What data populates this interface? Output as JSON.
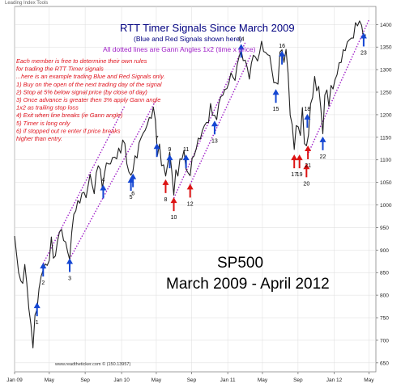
{
  "header": {
    "source_label": "Leading Index Tools"
  },
  "title": "RTT Timer Signals Since March 2009",
  "subtitle": "(Blue and Red Signals shown here)",
  "gann_note": "All dotted lines are Gann Angles 1x2 (time x price)",
  "notes": [
    "Each member is free to determine their own rules",
    "for trading the RTT Timer signals",
    "...here is an example trading Blue and Red Signals only.",
    "1) Buy on the open of the next trading day of the signal",
    "2) Stop at 5% below signal price (by close of day)",
    "3) Once advance is greater then 3% apply Gann angle",
    "    1x2 as trailing stop loss",
    "4) Exit when line breaks (ie Gann angle)",
    "5) Timer is long only",
    "6) if stopped out re enter if price breaks",
    "    higher than entry."
  ],
  "big_label": {
    "line1": "SP500",
    "line2": "March 2009 - April 2012"
  },
  "watermark": "www.readtheticker.com © (150.13957)",
  "colors": {
    "price": "#222222",
    "title": "#000080",
    "note_red": "#e0141e",
    "gann": "#a020c8",
    "blue_arrow": "#1446d2",
    "red_arrow": "#dc1414",
    "grid": "#dcdcdc"
  },
  "chart_data": {
    "type": "line",
    "series": [
      {
        "values": [
          [
            "2009-01-02",
            931
          ],
          [
            "2009-01-09",
            890
          ],
          [
            "2009-01-16",
            850
          ],
          [
            "2009-01-23",
            832
          ],
          [
            "2009-01-30",
            826
          ],
          [
            "2009-02-06",
            868
          ],
          [
            "2009-02-13",
            826
          ],
          [
            "2009-02-20",
            770
          ],
          [
            "2009-02-27",
            735
          ],
          [
            "2009-03-06",
            683
          ],
          [
            "2009-03-13",
            756
          ],
          [
            "2009-03-20",
            768
          ],
          [
            "2009-03-27",
            815
          ],
          [
            "2009-04-03",
            842
          ],
          [
            "2009-04-10",
            856
          ],
          [
            "2009-04-17",
            869
          ],
          [
            "2009-04-24",
            866
          ],
          [
            "2009-05-01",
            877
          ],
          [
            "2009-05-08",
            929
          ],
          [
            "2009-05-15",
            882
          ],
          [
            "2009-05-22",
            887
          ],
          [
            "2009-05-29",
            919
          ],
          [
            "2009-06-05",
            940
          ],
          [
            "2009-06-12",
            946
          ],
          [
            "2009-06-19",
            921
          ],
          [
            "2009-06-26",
            918
          ],
          [
            "2009-07-03",
            896
          ],
          [
            "2009-07-10",
            879
          ],
          [
            "2009-07-17",
            940
          ],
          [
            "2009-07-24",
            979
          ],
          [
            "2009-07-31",
            987
          ],
          [
            "2009-08-07",
            1010
          ],
          [
            "2009-08-14",
            1004
          ],
          [
            "2009-08-21",
            1026
          ],
          [
            "2009-08-28",
            1028
          ],
          [
            "2009-09-04",
            1016
          ],
          [
            "2009-09-11",
            1042
          ],
          [
            "2009-09-18",
            1068
          ],
          [
            "2009-09-25",
            1044
          ],
          [
            "2009-10-02",
            1025
          ],
          [
            "2009-10-09",
            1071
          ],
          [
            "2009-10-16",
            1087
          ],
          [
            "2009-10-23",
            1079
          ],
          [
            "2009-10-30",
            1036
          ],
          [
            "2009-11-06",
            1069
          ],
          [
            "2009-11-13",
            1093
          ],
          [
            "2009-11-20",
            1091
          ],
          [
            "2009-11-27",
            1091
          ],
          [
            "2009-12-04",
            1105
          ],
          [
            "2009-12-11",
            1106
          ],
          [
            "2009-12-18",
            1102
          ],
          [
            "2009-12-25",
            1126
          ],
          [
            "2010-01-01",
            1115
          ],
          [
            "2010-01-08",
            1144
          ],
          [
            "2010-01-15",
            1136
          ],
          [
            "2010-01-22",
            1091
          ],
          [
            "2010-01-29",
            1073
          ],
          [
            "2010-02-05",
            1066
          ],
          [
            "2010-02-12",
            1075
          ],
          [
            "2010-02-19",
            1109
          ],
          [
            "2010-02-26",
            1104
          ],
          [
            "2010-03-05",
            1138
          ],
          [
            "2010-03-12",
            1149
          ],
          [
            "2010-03-19",
            1159
          ],
          [
            "2010-03-26",
            1166
          ],
          [
            "2010-04-02",
            1178
          ],
          [
            "2010-04-09",
            1194
          ],
          [
            "2010-04-16",
            1192
          ],
          [
            "2010-04-23",
            1217
          ],
          [
            "2010-04-30",
            1187
          ],
          [
            "2010-05-07",
            1110
          ],
          [
            "2010-05-14",
            1135
          ],
          [
            "2010-05-21",
            1087
          ],
          [
            "2010-05-28",
            1089
          ],
          [
            "2010-06-04",
            1064
          ],
          [
            "2010-06-11",
            1091
          ],
          [
            "2010-06-18",
            1117
          ],
          [
            "2010-06-25",
            1076
          ],
          [
            "2010-07-02",
            1022
          ],
          [
            "2010-07-09",
            1078
          ],
          [
            "2010-07-16",
            1064
          ],
          [
            "2010-07-23",
            1102
          ],
          [
            "2010-07-30",
            1101
          ],
          [
            "2010-08-06",
            1121
          ],
          [
            "2010-08-13",
            1079
          ],
          [
            "2010-08-20",
            1071
          ],
          [
            "2010-08-27",
            1065
          ],
          [
            "2010-09-03",
            1104
          ],
          [
            "2010-09-10",
            1109
          ],
          [
            "2010-09-17",
            1125
          ],
          [
            "2010-09-24",
            1148
          ],
          [
            "2010-10-01",
            1146
          ],
          [
            "2010-10-08",
            1165
          ],
          [
            "2010-10-15",
            1176
          ],
          [
            "2010-10-22",
            1183
          ],
          [
            "2010-10-29",
            1183
          ],
          [
            "2010-11-05",
            1225
          ],
          [
            "2010-11-12",
            1199
          ],
          [
            "2010-11-19",
            1199
          ],
          [
            "2010-11-26",
            1189
          ],
          [
            "2010-12-03",
            1224
          ],
          [
            "2010-12-10",
            1240
          ],
          [
            "2010-12-17",
            1243
          ],
          [
            "2010-12-24",
            1256
          ],
          [
            "2010-12-31",
            1258
          ],
          [
            "2011-01-07",
            1271
          ],
          [
            "2011-01-14",
            1293
          ],
          [
            "2011-01-21",
            1283
          ],
          [
            "2011-01-28",
            1276
          ],
          [
            "2011-02-04",
            1310
          ],
          [
            "2011-02-11",
            1329
          ],
          [
            "2011-02-18",
            1343
          ],
          [
            "2011-02-25",
            1320
          ],
          [
            "2011-03-04",
            1321
          ],
          [
            "2011-03-11",
            1304
          ],
          [
            "2011-03-18",
            1279
          ],
          [
            "2011-03-25",
            1314
          ],
          [
            "2011-04-01",
            1332
          ],
          [
            "2011-04-08",
            1328
          ],
          [
            "2011-04-15",
            1319
          ],
          [
            "2011-04-22",
            1337
          ],
          [
            "2011-04-29",
            1363
          ],
          [
            "2011-05-06",
            1340
          ],
          [
            "2011-05-13",
            1338
          ],
          [
            "2011-05-20",
            1333
          ],
          [
            "2011-05-27",
            1331
          ],
          [
            "2011-06-03",
            1300
          ],
          [
            "2011-06-10",
            1271
          ],
          [
            "2011-06-17",
            1271
          ],
          [
            "2011-06-24",
            1268
          ],
          [
            "2011-07-01",
            1339
          ],
          [
            "2011-07-08",
            1344
          ],
          [
            "2011-07-15",
            1316
          ],
          [
            "2011-07-22",
            1345
          ],
          [
            "2011-07-29",
            1292
          ],
          [
            "2011-08-05",
            1199
          ],
          [
            "2011-08-12",
            1178
          ],
          [
            "2011-08-19",
            1123
          ],
          [
            "2011-08-26",
            1176
          ],
          [
            "2011-09-02",
            1173
          ],
          [
            "2011-09-09",
            1154
          ],
          [
            "2011-09-16",
            1216
          ],
          [
            "2011-09-23",
            1136
          ],
          [
            "2011-09-30",
            1131
          ],
          [
            "2011-10-07",
            1155
          ],
          [
            "2011-10-14",
            1224
          ],
          [
            "2011-10-21",
            1238
          ],
          [
            "2011-10-28",
            1285
          ],
          [
            "2011-11-04",
            1253
          ],
          [
            "2011-11-11",
            1263
          ],
          [
            "2011-11-18",
            1215
          ],
          [
            "2011-11-25",
            1158
          ],
          [
            "2011-12-02",
            1244
          ],
          [
            "2011-12-09",
            1255
          ],
          [
            "2011-12-16",
            1219
          ],
          [
            "2011-12-23",
            1265
          ],
          [
            "2011-12-30",
            1257
          ],
          [
            "2012-01-06",
            1278
          ],
          [
            "2012-01-13",
            1289
          ],
          [
            "2012-01-20",
            1315
          ],
          [
            "2012-01-27",
            1316
          ],
          [
            "2012-02-03",
            1344
          ],
          [
            "2012-02-10",
            1342
          ],
          [
            "2012-02-17",
            1361
          ],
          [
            "2012-02-24",
            1366
          ],
          [
            "2012-03-02",
            1370
          ],
          [
            "2012-03-09",
            1370
          ],
          [
            "2012-03-16",
            1404
          ],
          [
            "2012-03-23",
            1397
          ],
          [
            "2012-03-30",
            1408
          ],
          [
            "2012-04-06",
            1398
          ],
          [
            "2012-04-13",
            1370
          ],
          [
            "2012-04-20",
            1378
          ]
        ]
      }
    ],
    "ylim": [
      630,
      1440
    ],
    "y_ticks": [
      650,
      700,
      750,
      800,
      850,
      900,
      950,
      1000,
      1050,
      1100,
      1150,
      1200,
      1250,
      1300,
      1350,
      1400
    ],
    "x_ticks": [
      {
        "label": "Jan 09",
        "date": "2009-01-02"
      },
      {
        "label": "May",
        "date": "2009-05-01"
      },
      {
        "label": "Sep",
        "date": "2009-09-01"
      },
      {
        "label": "Jan 10",
        "date": "2010-01-04"
      },
      {
        "label": "May",
        "date": "2010-05-03"
      },
      {
        "label": "Sep",
        "date": "2010-09-01"
      },
      {
        "label": "Jan 11",
        "date": "2011-01-03"
      },
      {
        "label": "May",
        "date": "2011-05-02"
      },
      {
        "label": "Sep",
        "date": "2011-09-01"
      },
      {
        "label": "Jan 12",
        "date": "2012-01-03"
      },
      {
        "label": "May",
        "date": "2012-05-01"
      }
    ],
    "grid": true,
    "signals": [
      {
        "label": "1",
        "color": "blue",
        "date": "2009-03-20",
        "price": 782,
        "side": "below"
      },
      {
        "label": "2",
        "color": "blue",
        "date": "2009-04-10",
        "price": 870,
        "side": "below"
      },
      {
        "label": "3",
        "color": "blue",
        "date": "2009-07-10",
        "price": 880,
        "side": "below"
      },
      {
        "label": "4",
        "color": "blue",
        "date": "2009-11-02",
        "price": 1043,
        "side": "above"
      },
      {
        "label": "5",
        "color": "blue",
        "date": "2010-02-05",
        "price": 1060,
        "side": "below"
      },
      {
        "label": "6",
        "color": "blue",
        "date": "2010-02-12",
        "price": 1068,
        "side": "below"
      },
      {
        "label": "7",
        "color": "blue",
        "date": "2010-05-05",
        "price": 1135,
        "side": "above"
      },
      {
        "label": "8",
        "color": "red",
        "date": "2010-06-04",
        "price": 1055,
        "side": "below"
      },
      {
        "label": "9",
        "color": "blue",
        "date": "2010-06-18",
        "price": 1110,
        "side": "above"
      },
      {
        "label": "10",
        "color": "red",
        "date": "2010-07-02",
        "price": 1015,
        "side": "below"
      },
      {
        "label": "11",
        "color": "blue",
        "date": "2010-08-13",
        "price": 1110,
        "side": "above"
      },
      {
        "label": "12",
        "color": "red",
        "date": "2010-08-27",
        "price": 1045,
        "side": "below"
      },
      {
        "label": "13",
        "color": "blue",
        "date": "2010-11-19",
        "price": 1185,
        "side": "below"
      },
      {
        "label": "14",
        "color": "blue",
        "date": "2011-02-18",
        "price": 1355,
        "side": "above"
      },
      {
        "label": "15",
        "color": "blue",
        "date": "2011-06-17",
        "price": 1255,
        "side": "below"
      },
      {
        "label": "16",
        "color": "blue",
        "date": "2011-07-08",
        "price": 1340,
        "side": "above"
      },
      {
        "label": "17",
        "color": "red",
        "date": "2011-08-19",
        "price": 1110,
        "side": "below"
      },
      {
        "label": "18",
        "color": "blue",
        "date": "2011-10-03",
        "price": 1200,
        "side": "above"
      },
      {
        "label": "19",
        "color": "red",
        "date": "2011-09-06",
        "price": 1110,
        "side": "below"
      },
      {
        "label": "20",
        "color": "red",
        "date": "2011-09-30",
        "price": 1090,
        "side": "below"
      },
      {
        "label": "21",
        "color": "red",
        "date": "2011-10-05",
        "price": 1130,
        "side": "below"
      },
      {
        "label": "22",
        "color": "blue",
        "date": "2011-11-25",
        "price": 1150,
        "side": "below"
      },
      {
        "label": "23",
        "color": "blue",
        "date": "2012-04-13",
        "price": 1380,
        "side": "below"
      }
    ],
    "gann_lines": [
      {
        "from": [
          "2009-04-10",
          870
        ],
        "to": [
          "2010-01-15",
          1220
        ]
      },
      {
        "from": [
          "2009-07-10",
          880
        ],
        "to": [
          "2010-04-30",
          1230
        ]
      },
      {
        "from": [
          "2010-07-02",
          1015
        ],
        "to": [
          "2011-03-04",
          1360
        ]
      },
      {
        "from": [
          "2010-08-27",
          1045
        ],
        "to": [
          "2011-03-25",
          1335
        ]
      },
      {
        "from": [
          "2011-10-03",
          1110
        ],
        "to": [
          "2012-05-01",
          1410
        ]
      }
    ]
  }
}
